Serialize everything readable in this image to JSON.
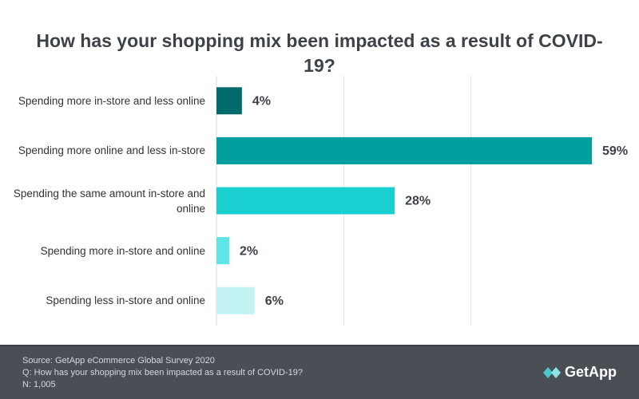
{
  "chart_data": {
    "type": "bar",
    "orientation": "horizontal",
    "title": "How has your shopping mix been impacted as a result of COVID-19?",
    "categories": [
      "Spending more in-store and less online",
      "Spending more online and less in-store",
      "Spending the same amount in-store and online",
      "Spending more in-store and online",
      "Spending less in-store and online"
    ],
    "values": [
      4,
      59,
      28,
      2,
      6
    ],
    "value_labels": [
      "4%",
      "59%",
      "28%",
      "2%",
      "6%"
    ],
    "colors": [
      "#006b6b",
      "#009e9e",
      "#1acfcf",
      "#5ee6e6",
      "#c2f2f2"
    ],
    "xlim": [
      0,
      60
    ],
    "xticks": [
      0,
      20,
      40
    ],
    "grid": true
  },
  "footer": {
    "source": "Source: GetApp eCommerce Global Survey 2020",
    "question": "Q: How has your shopping mix been impacted as a result of COVID-19?",
    "n": "N: 1,005",
    "brand": "GetApp"
  }
}
